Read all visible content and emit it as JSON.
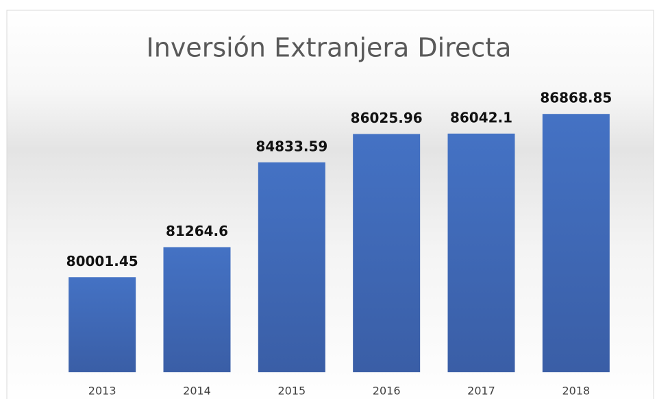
{
  "chart_data": {
    "type": "bar",
    "title": "Inversión Extranjera Directa",
    "categories": [
      "2013",
      "2014",
      "2015",
      "2016",
      "2017",
      "2018"
    ],
    "values": [
      80001.45,
      81264.6,
      84833.59,
      86025.96,
      86042.1,
      86868.85
    ],
    "color": "#4472c4",
    "ylim": [
      76000,
      88000
    ]
  }
}
